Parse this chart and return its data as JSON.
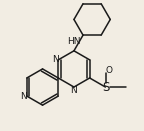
{
  "bg_color": "#f2ede3",
  "bond_color": "#1a1a1a",
  "text_color": "#1a1a1a",
  "line_width": 1.1,
  "font_size": 6.5,
  "figsize": [
    1.44,
    1.31
  ],
  "dpi": 100,
  "xlim": [
    0,
    144
  ],
  "ylim": [
    0,
    131
  ]
}
